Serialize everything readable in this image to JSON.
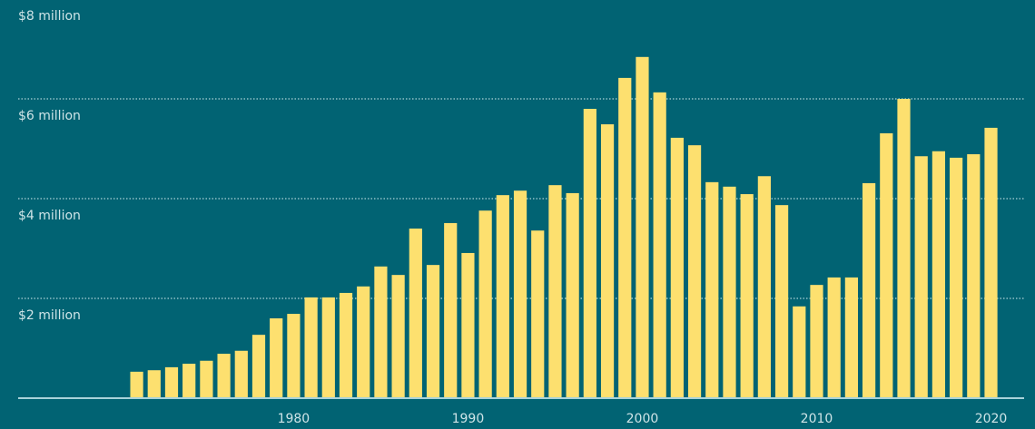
{
  "chart_data": {
    "type": "bar",
    "x": [
      1971,
      1972,
      1973,
      1974,
      1975,
      1976,
      1977,
      1978,
      1979,
      1980,
      1981,
      1982,
      1983,
      1984,
      1985,
      1986,
      1987,
      1988,
      1989,
      1990,
      1991,
      1992,
      1993,
      1994,
      1995,
      1996,
      1997,
      1998,
      1999,
      2000,
      2001,
      2002,
      2003,
      2004,
      2005,
      2006,
      2007,
      2008,
      2009,
      2010,
      2011,
      2012,
      2013,
      2014,
      2015,
      2016,
      2017,
      2018,
      2019,
      2020
    ],
    "values": [
      0.53,
      0.56,
      0.62,
      0.69,
      0.75,
      0.89,
      0.95,
      1.27,
      1.6,
      1.69,
      2.02,
      2.02,
      2.11,
      2.24,
      2.64,
      2.47,
      3.4,
      2.67,
      3.51,
      2.91,
      3.76,
      4.07,
      4.16,
      3.36,
      4.27,
      4.11,
      5.8,
      5.49,
      6.42,
      6.84,
      6.13,
      5.22,
      5.07,
      4.33,
      4.24,
      4.09,
      4.45,
      3.87,
      1.84,
      2.27,
      2.42,
      2.42,
      4.31,
      5.31,
      6.0,
      4.85,
      4.95,
      4.82,
      4.89,
      5.42
    ],
    "color": "#fde06f",
    "xlim": [
      1964.2,
      2021.9
    ],
    "xticks": [
      1980,
      1990,
      2000,
      2010,
      2020
    ],
    "ylim": [
      0,
      8
    ],
    "yticks": [
      {
        "value": 2,
        "label": "$2 million"
      },
      {
        "value": 4,
        "label": "$4 million"
      },
      {
        "value": 6,
        "label": "$6 million"
      },
      {
        "value": 8,
        "label": "$8 million"
      }
    ],
    "grid": true
  }
}
